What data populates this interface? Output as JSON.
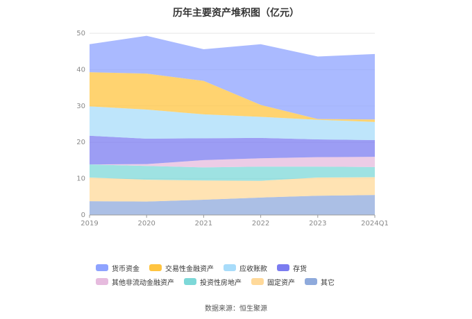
{
  "chart_data": {
    "type": "area",
    "stacked": true,
    "title": "历年主要资产堆积图（亿元）",
    "categories": [
      "2019",
      "2020",
      "2021",
      "2022",
      "2023",
      "2024Q1"
    ],
    "ylim": [
      0,
      50
    ],
    "yticks": [
      0,
      10,
      20,
      30,
      40,
      50
    ],
    "grid": true,
    "legend_position": "bottom",
    "series": [
      {
        "name": "其它",
        "color": "#8faadc",
        "values": [
          3.8,
          3.7,
          4.2,
          4.8,
          5.3,
          5.5
        ]
      },
      {
        "name": "固定资产",
        "color": "#ffd99a",
        "values": [
          6.5,
          6.0,
          5.3,
          4.6,
          5.0,
          4.9
        ]
      },
      {
        "name": "投资性房地产",
        "color": "#7dd8d8",
        "values": [
          3.6,
          3.8,
          3.6,
          3.9,
          3.0,
          2.8
        ]
      },
      {
        "name": "其他非流动金融资产",
        "color": "#e6bbde",
        "values": [
          0.0,
          0.5,
          2.0,
          2.3,
          2.6,
          2.8
        ]
      },
      {
        "name": "存货",
        "color": "#7b7cf0",
        "values": [
          7.9,
          7.0,
          6.0,
          5.6,
          4.9,
          4.6
        ]
      },
      {
        "name": "应收账款",
        "color": "#a8dcfa",
        "values": [
          8.1,
          8.0,
          6.6,
          5.8,
          5.4,
          5.0
        ]
      },
      {
        "name": "交易性金融资产",
        "color": "#ffc440",
        "values": [
          9.4,
          9.9,
          9.2,
          3.3,
          0.2,
          0.7
        ]
      },
      {
        "name": "货币资金",
        "color": "#8ea3ff",
        "values": [
          7.7,
          10.4,
          8.7,
          16.7,
          17.2,
          18.0
        ]
      }
    ]
  },
  "legend_order": [
    "货币资金",
    "交易性金融资产",
    "应收账款",
    "存货",
    "其他非流动金融资产",
    "投资性房地产",
    "固定资产",
    "其它"
  ],
  "source_text": "数据来源：恒生聚源"
}
